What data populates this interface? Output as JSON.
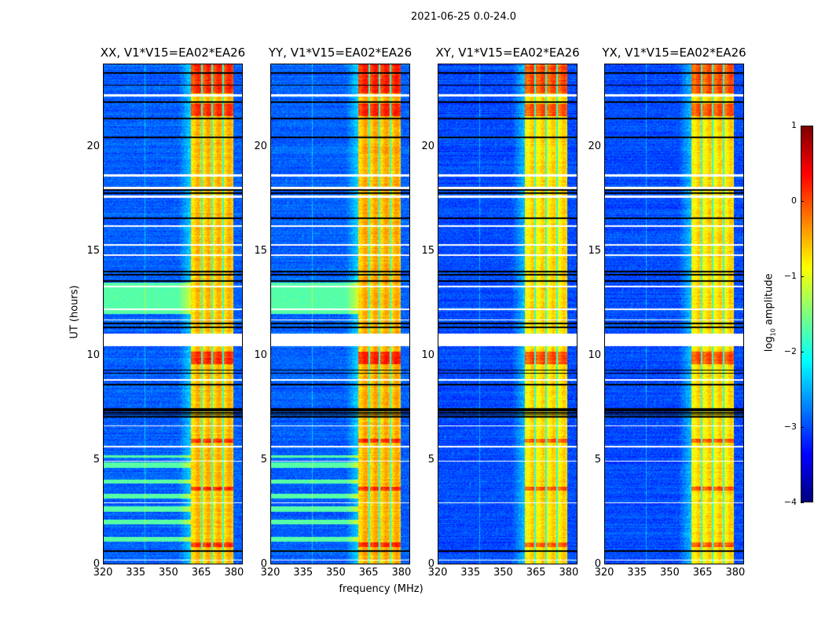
{
  "chart_data": {
    "type": "heatmap",
    "title": "2021-06-25 0.0-24.0",
    "xlabel": "frequency (MHz)",
    "ylabel": "UT (hours)",
    "xlim": [
      320,
      384
    ],
    "ylim": [
      0,
      24
    ],
    "xticks": [
      320,
      335,
      350,
      365,
      380
    ],
    "yticks": [
      0,
      5,
      10,
      15,
      20
    ],
    "colorbar": {
      "label_main": "log",
      "label_sub": "10",
      "label_rest": " amplitude",
      "clim": [
        -4,
        1
      ],
      "ticks": [
        1,
        0,
        -1,
        -2,
        -3,
        -4
      ],
      "tick_labels": [
        "1",
        "0",
        "−1",
        "−2",
        "−3",
        "−4"
      ],
      "colormap": "jet"
    },
    "panels": [
      {
        "title": "XX, V1*V15=EA02*EA26",
        "background_level": -2.9,
        "band_mhz": [
          360.5,
          380
        ],
        "band_level": -0.6,
        "subband_edges_mhz": [
          365.3,
          370.3,
          375.2
        ],
        "stripes": true
      },
      {
        "title": "YY, V1*V15=EA02*EA26",
        "background_level": -2.9,
        "band_mhz": [
          360.5,
          380
        ],
        "band_level": -0.55,
        "subband_edges_mhz": [
          365.3,
          370.3,
          375.2
        ],
        "stripes": true
      },
      {
        "title": "XY, V1*V15=EA02*EA26",
        "background_level": -3.0,
        "band_mhz": [
          360,
          379.5
        ],
        "band_level": -0.75,
        "subband_edges_mhz": [
          364.8,
          369.8,
          374.8
        ],
        "stripes": false
      },
      {
        "title": "YX, V1*V15=EA02*EA26",
        "background_level": -3.0,
        "band_mhz": [
          360,
          379.5
        ],
        "band_level": -0.75,
        "subband_edges_mhz": [
          364.8,
          369.8,
          374.8
        ],
        "stripes": false
      }
    ],
    "flagged_hours": [
      [
        10.45,
        11.05
      ],
      [
        22.45,
        22.55
      ],
      [
        18.6,
        18.7
      ],
      [
        18.0,
        18.1
      ],
      [
        17.6,
        17.7
      ],
      [
        16.2,
        16.25
      ],
      [
        15.3,
        15.35
      ],
      [
        14.8,
        14.85
      ],
      [
        13.3,
        13.35
      ],
      [
        12.2,
        12.25
      ],
      [
        11.7,
        11.75
      ],
      [
        8.8,
        8.85
      ],
      [
        6.6,
        6.65
      ],
      [
        5.6,
        5.65
      ],
      [
        4.9,
        4.95
      ],
      [
        2.9,
        2.95
      ],
      [
        0.15,
        0.2
      ]
    ],
    "blank_hours": [
      23.6,
      23.0,
      22.2,
      21.4,
      20.5,
      17.95,
      17.8,
      16.6,
      14.05,
      13.9,
      13.6,
      11.55,
      11.35,
      9.3,
      9.15,
      8.6,
      7.45,
      7.35,
      7.25,
      7.15,
      7.05,
      0.6
    ],
    "cyan_stripe_hours": [
      [
        1.05,
        1.3
      ],
      [
        1.9,
        2.1
      ],
      [
        2.5,
        2.75
      ],
      [
        3.15,
        3.35
      ],
      [
        3.85,
        4.05
      ],
      [
        4.6,
        4.85
      ],
      [
        5.1,
        5.2
      ],
      [
        12.0,
        13.5
      ]
    ],
    "high_rfi_hours": [
      [
        22.6,
        24
      ],
      [
        21.5,
        22.1
      ],
      [
        9.6,
        10.2
      ],
      [
        5.8,
        6.0
      ],
      [
        3.5,
        3.7
      ],
      [
        0.8,
        1.0
      ]
    ]
  }
}
